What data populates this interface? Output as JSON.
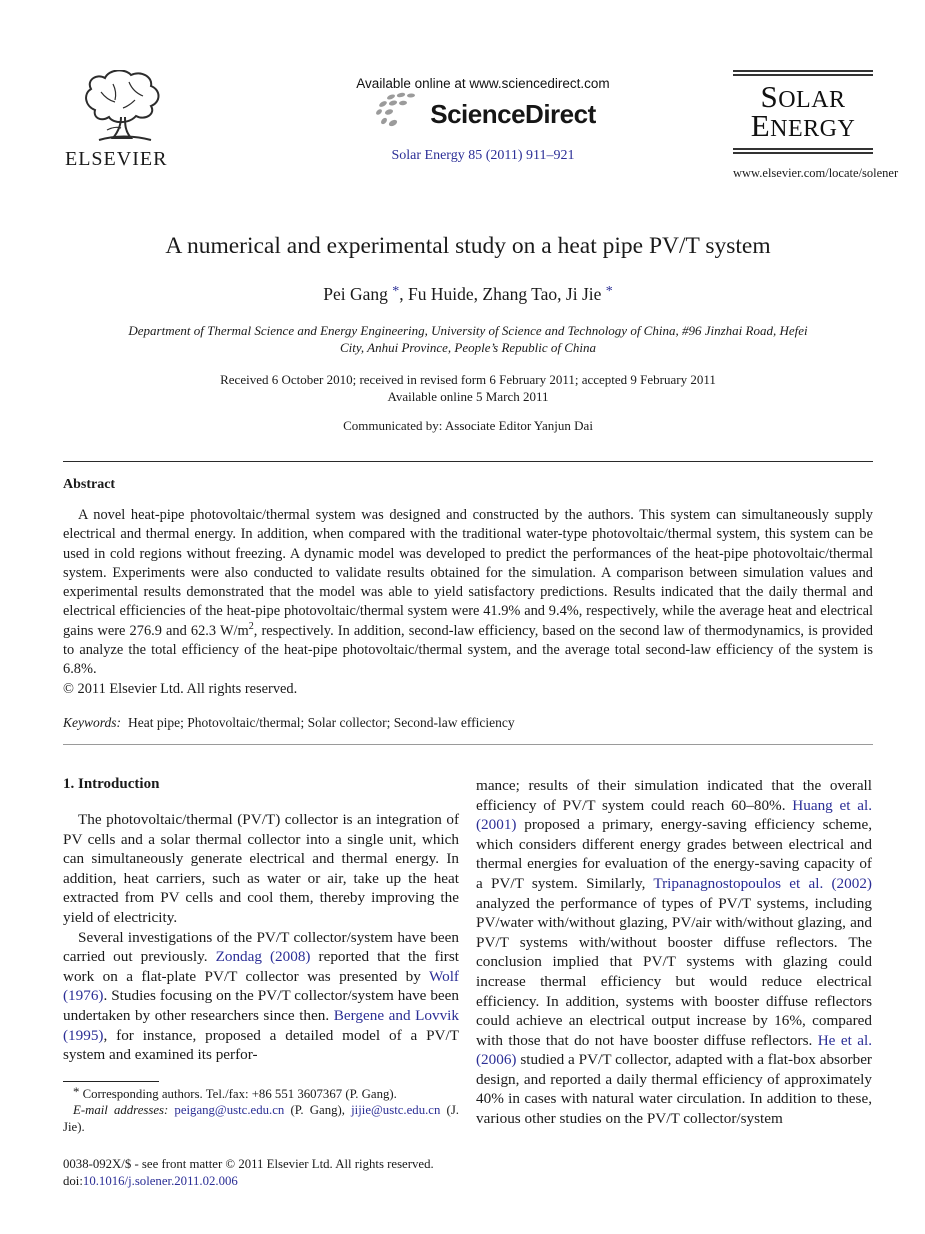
{
  "colors": {
    "link": "#2b2e96",
    "text": "#1a1a1a",
    "rule_dark": "#2a2a2a",
    "rule_gray": "#9a9a9a",
    "logo_gray": "#9b9b9b"
  },
  "header": {
    "available_online": "Available online at www.sciencedirect.com",
    "sciencedirect_logo": "ScienceDirect",
    "journal_citation": "Solar Energy 85 (2011) 911–921",
    "elsevier_wordmark": "ELSEVIER",
    "journal_name_word1": "Solar",
    "journal_name_word2": "Energy",
    "journal_url": "www.elsevier.com/locate/solener"
  },
  "article": {
    "title": "A numerical and experimental study on a heat pipe PV/T system",
    "authors_rich": [
      {
        "text": "Pei Gang "
      },
      {
        "text": "*",
        "style": "suplink",
        "name": "author-asterisk-link"
      },
      {
        "text": ", Fu Huide, Zhang Tao, Ji Jie "
      },
      {
        "text": "*",
        "style": "suplink",
        "name": "author-asterisk-link"
      }
    ],
    "affiliation": "Department of Thermal Science and Energy Engineering, University of Science and Technology of China, #96 Jinzhai Road, Hefei City, Anhui Province, People’s Republic of China",
    "received": "Received 6 October 2010; received in revised form 6 February 2011; accepted 9 February 2011",
    "available_online_date": "Available online 5 March 2011",
    "communicated": "Communicated by: Associate Editor Yanjun Dai"
  },
  "abstract": {
    "heading": "Abstract",
    "body_rich": [
      {
        "text": "A novel heat-pipe photovoltaic/thermal system was designed and constructed by the authors. This system can simultaneously supply electrical and thermal energy. In addition, when compared with the traditional water-type photovoltaic/thermal system, this system can be used in cold regions without freezing. A dynamic model was developed to predict the performances of the heat-pipe photovoltaic/thermal system. Experiments were also conducted to validate results obtained for the simulation. A comparison between simulation values and experimental results demonstrated that the model was able to yield satisfactory predictions. Results indicated that the daily thermal and electrical efficiencies of the heat-pipe photovoltaic/thermal system were 41.9% and 9.4%, respectively, while the average heat and electrical gains were 276.9 and 62.3 W/m"
      },
      {
        "text": "2",
        "style": "sup"
      },
      {
        "text": ", respectively. In addition, second-law efficiency, based on the second law of thermodynamics, is provided to analyze the total efficiency of the heat-pipe photovoltaic/thermal system, and the average total second-law efficiency of the system is 6.8%."
      }
    ],
    "copyright": "© 2011 Elsevier Ltd. All rights reserved."
  },
  "keywords": {
    "label": "Keywords:",
    "text": "Heat pipe; Photovoltaic/thermal; Solar collector; Second-law efficiency"
  },
  "introduction": {
    "heading": "1. Introduction",
    "paragraph1": "The photovoltaic/thermal (PV/T) collector is an integration of PV cells and a solar thermal collector into a single unit, which can simultaneously generate electrical and thermal energy. In addition, heat carriers, such as water or air, take up the heat extracted from PV cells and cool them, thereby improving the yield of electricity.",
    "paragraph2_rich": [
      {
        "text": "Several investigations of the PV/T collector/system have been carried out previously. "
      },
      {
        "text": "Zondag (2008)",
        "style": "link",
        "name": "citation-link"
      },
      {
        "text": " reported that the first work on a flat-plate PV/T collector was presented by "
      },
      {
        "text": "Wolf (1976)",
        "style": "link",
        "name": "citation-link"
      },
      {
        "text": ". Studies focusing on the PV/T collector/system have been undertaken by other researchers since then. "
      },
      {
        "text": "Bergene and Lovvik (1995)",
        "style": "link",
        "name": "citation-link"
      },
      {
        "text": ", for instance, proposed a detailed model of a PV/T system and examined its perfor-"
      }
    ],
    "right_column_rich": [
      {
        "text": "mance; results of their simulation indicated that the overall efficiency of PV/T system could reach 60–80%. "
      },
      {
        "text": "Huang et al. (2001)",
        "style": "link",
        "name": "citation-link"
      },
      {
        "text": " proposed a primary, energy-saving efficiency scheme, which considers different energy grades between electrical and thermal energies for evaluation of the energy-saving capacity of a PV/T system. Similarly, "
      },
      {
        "text": "Tripanagnostopoulos et al. (2002)",
        "style": "link",
        "name": "citation-link"
      },
      {
        "text": " analyzed the performance of types of PV/T systems, including PV/water with/without glazing, PV/air with/without glazing, and PV/T systems with/without booster diffuse reflectors. The conclusion implied that PV/T systems with glazing could increase thermal efficiency but would reduce electrical efficiency. In addition, systems with booster diffuse reflectors could achieve an electrical output increase by 16%, compared with those that do not have booster diffuse reflectors. "
      },
      {
        "text": "He et al. (2006)",
        "style": "link",
        "name": "citation-link"
      },
      {
        "text": " studied a PV/T collector, adapted with a flat-box absorber design, and reported a daily thermal efficiency of approximately 40% in cases with natural water circulation. In addition to these, various other studies on the PV/T collector/system"
      }
    ]
  },
  "footnote": {
    "line1_rich": [
      {
        "text": "* ",
        "style": "fnmark"
      },
      {
        "text": "Corresponding authors. Tel./fax: +86 551 3607367 (P. Gang)."
      }
    ],
    "line2_rich": [
      {
        "text": "E-mail addresses: ",
        "style": "italic"
      },
      {
        "text": "peigang@ustc.edu.cn",
        "style": "link",
        "name": "email-link"
      },
      {
        "text": " (P. Gang), "
      },
      {
        "text": "jijie@ustc.edu.cn",
        "style": "link",
        "name": "email-link"
      },
      {
        "text": " (J. Jie)."
      }
    ]
  },
  "footer": {
    "issn_line": "0038-092X/$ - see front matter © 2011 Elsevier Ltd. All rights reserved.",
    "doi_rich": [
      {
        "text": "doi:"
      },
      {
        "text": "10.1016/j.solener.2011.02.006",
        "style": "link",
        "name": "doi-link"
      }
    ]
  }
}
